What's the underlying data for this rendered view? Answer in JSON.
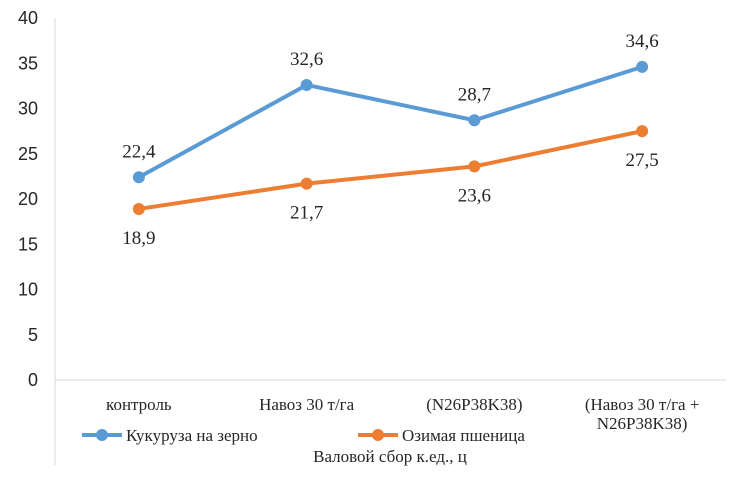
{
  "chart_data": {
    "type": "line",
    "categories": [
      [
        "контроль"
      ],
      [
        "Навоз 30 т/га"
      ],
      [
        "(N26P38K38)"
      ],
      [
        "(Навоз 30 т/га +",
        "N26P38K38)"
      ]
    ],
    "series": [
      {
        "name": "Кукуруза на зерно",
        "values": [
          22.4,
          32.6,
          28.7,
          34.6
        ],
        "labels": [
          "22,4",
          "32,6",
          "28,7",
          "34,6"
        ],
        "label_position": "above",
        "color": "#5b9bd5"
      },
      {
        "name": "Озимая пшеница",
        "values": [
          18.9,
          21.7,
          23.6,
          27.5
        ],
        "labels": [
          "18,9",
          "21,7",
          "23,6",
          "27,5"
        ],
        "label_position": "below",
        "color": "#ed7d31"
      }
    ],
    "yticks": [
      "0",
      "5",
      "10",
      "15",
      "20",
      "25",
      "30",
      "35",
      "40"
    ],
    "ylim": [
      0,
      40
    ],
    "grid": false,
    "legend": "bottom",
    "xlabel": "Валовой сбор к.ед., ц",
    "ylabel": "",
    "title": ""
  }
}
